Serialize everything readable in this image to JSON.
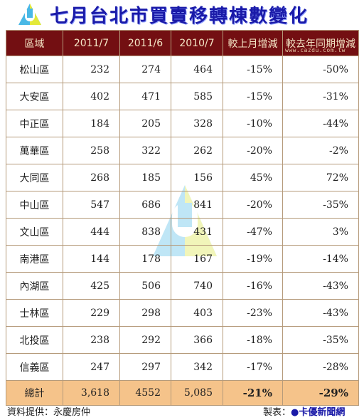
{
  "header": {
    "title": "七月台北市買賣移轉棟數變化",
    "logo_icon": "u-logo-icon"
  },
  "table": {
    "columns": [
      "區域",
      "2011/7",
      "2011/6",
      "2010/7",
      "較上月增減",
      "較去年同期增減"
    ],
    "watermark": "www.cazdu.com.tw",
    "rows": [
      [
        "松山區",
        "232",
        "274",
        "464",
        "-15%",
        "-50%"
      ],
      [
        "大安區",
        "402",
        "471",
        "585",
        "-15%",
        "-31%"
      ],
      [
        "中正區",
        "184",
        "205",
        "328",
        "-10%",
        "-44%"
      ],
      [
        "萬華區",
        "258",
        "322",
        "262",
        "-20%",
        "-2%"
      ],
      [
        "大同區",
        "268",
        "185",
        "156",
        "45%",
        "72%"
      ],
      [
        "中山區",
        "547",
        "686",
        "841",
        "-20%",
        "-35%"
      ],
      [
        "文山區",
        "444",
        "838",
        "431",
        "-47%",
        "3%"
      ],
      [
        "南港區",
        "144",
        "178",
        "167",
        "-19%",
        "-14%"
      ],
      [
        "內湖區",
        "425",
        "506",
        "740",
        "-16%",
        "-43%"
      ],
      [
        "士林區",
        "229",
        "298",
        "403",
        "-23%",
        "-43%"
      ],
      [
        "北投區",
        "238",
        "292",
        "366",
        "-18%",
        "-35%"
      ],
      [
        "信義區",
        "247",
        "297",
        "342",
        "-17%",
        "-28%"
      ]
    ],
    "total": [
      "總計",
      "3,618",
      "4552",
      "5,085",
      "-21%",
      "-29%"
    ]
  },
  "footer": {
    "source": "資料提供：永慶房仲",
    "maker_label": "製表：",
    "maker_brand": "卡優新聞網"
  },
  "colors": {
    "header_bg": "#730f12",
    "header_text": "#f4e6c6",
    "negative": "#e2221e",
    "total_bg": "#f5c38a",
    "title": "#1a1aa8"
  }
}
